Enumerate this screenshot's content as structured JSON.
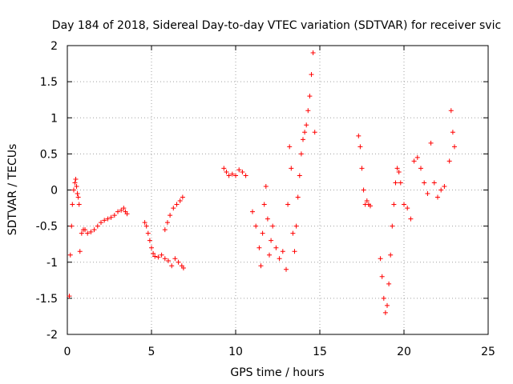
{
  "chart_data": {
    "type": "scatter",
    "title": "Day 184 of 2018, Sidereal Day-to-day VTEC variation (SDTVAR) for receiver svic",
    "xlabel": "GPS time / hours",
    "ylabel": "SDTVAR / TECUs",
    "xlim": [
      0,
      25
    ],
    "ylim": [
      -2,
      2
    ],
    "x_ticks": [
      0,
      5,
      10,
      15,
      20,
      25
    ],
    "y_ticks": [
      -2,
      -1.5,
      -1,
      -0.5,
      0,
      0.5,
      1,
      1.5,
      2
    ],
    "x_tick_labels": [
      "0",
      "5",
      "10",
      "15",
      "20",
      "25"
    ],
    "y_tick_labels": [
      "-2",
      "-1.5",
      "-1",
      "-0.5",
      "0",
      "0.5",
      "1",
      "1.5",
      "2"
    ],
    "grid": true,
    "marker": "plus",
    "color": "#ff0000",
    "series": [
      {
        "name": "SDTVAR",
        "x": [
          0.12,
          0.18,
          0.25,
          0.3,
          0.38,
          0.45,
          0.5,
          0.55,
          0.6,
          0.65,
          0.7,
          0.75,
          0.85,
          0.95,
          1.05,
          1.2,
          1.4,
          1.6,
          1.8,
          2.0,
          2.2,
          2.4,
          2.6,
          2.8,
          3.0,
          3.2,
          3.35,
          3.45,
          3.55,
          4.6,
          4.7,
          4.8,
          4.9,
          5.0,
          5.1,
          5.2,
          5.4,
          5.6,
          5.8,
          6.0,
          6.2,
          6.4,
          6.6,
          6.8,
          6.9,
          5.8,
          5.95,
          6.1,
          6.3,
          6.5,
          6.7,
          6.85,
          9.3,
          9.45,
          9.6,
          9.8,
          10.0,
          10.2,
          10.4,
          10.6,
          11.0,
          11.2,
          11.4,
          11.5,
          11.6,
          11.7,
          11.8,
          11.9,
          12.0,
          12.1,
          12.2,
          12.4,
          12.6,
          12.8,
          13.0,
          13.1,
          13.2,
          13.3,
          13.4,
          13.5,
          13.6,
          13.7,
          13.8,
          13.9,
          14.0,
          14.1,
          14.2,
          14.3,
          14.4,
          14.5,
          14.6,
          14.7,
          17.3,
          17.4,
          17.5,
          17.6,
          17.7,
          17.8,
          17.9,
          18.0,
          18.6,
          18.7,
          18.8,
          18.9,
          19.0,
          19.1,
          19.2,
          19.3,
          19.4,
          19.5,
          19.6,
          19.7,
          19.8,
          20.0,
          20.2,
          20.4,
          20.6,
          20.8,
          21.0,
          21.2,
          21.4,
          21.6,
          21.8,
          22.0,
          22.2,
          22.4,
          22.7,
          22.8,
          22.9,
          23.0
        ],
        "y": [
          -1.47,
          -0.9,
          -0.5,
          -0.2,
          0.0,
          0.1,
          0.15,
          0.05,
          -0.05,
          -0.1,
          -0.2,
          -0.85,
          -0.6,
          -0.55,
          -0.55,
          -0.6,
          -0.58,
          -0.55,
          -0.5,
          -0.45,
          -0.42,
          -0.4,
          -0.38,
          -0.35,
          -0.3,
          -0.28,
          -0.25,
          -0.3,
          -0.33,
          -0.45,
          -0.5,
          -0.6,
          -0.7,
          -0.8,
          -0.88,
          -0.92,
          -0.93,
          -0.9,
          -0.95,
          -0.98,
          -1.05,
          -0.95,
          -1.0,
          -1.05,
          -1.08,
          -0.55,
          -0.45,
          -0.35,
          -0.25,
          -0.2,
          -0.15,
          -0.1,
          0.3,
          0.25,
          0.2,
          0.22,
          0.2,
          0.28,
          0.25,
          0.2,
          -0.3,
          -0.5,
          -0.8,
          -1.05,
          -0.6,
          -0.2,
          0.05,
          -0.4,
          -0.9,
          -0.7,
          -0.5,
          -0.8,
          -0.95,
          -0.85,
          -1.1,
          -0.2,
          0.6,
          0.3,
          -0.6,
          -0.85,
          -0.5,
          -0.1,
          0.2,
          0.5,
          0.7,
          0.8,
          0.9,
          1.1,
          1.3,
          1.6,
          1.9,
          0.8,
          0.75,
          0.6,
          0.3,
          0.0,
          -0.2,
          -0.15,
          -0.2,
          -0.22,
          -0.95,
          -1.2,
          -1.5,
          -1.7,
          -1.6,
          -1.3,
          -0.9,
          -0.5,
          -0.2,
          0.1,
          0.3,
          0.25,
          0.1,
          -0.2,
          -0.25,
          -0.4,
          0.4,
          0.45,
          0.3,
          0.1,
          -0.05,
          0.65,
          0.1,
          -0.1,
          0.0,
          0.05,
          0.4,
          1.1,
          0.8,
          0.6
        ]
      }
    ]
  }
}
